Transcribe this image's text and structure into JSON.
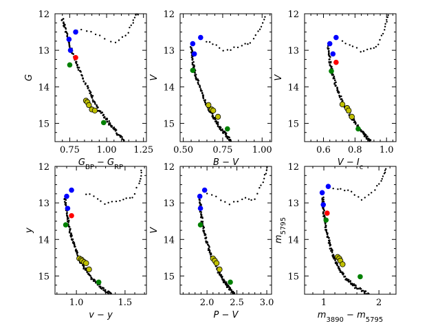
{
  "chart_data": [
    {
      "type": "scatter",
      "xlabel": "G_BP − G_RP",
      "ylabel": "G",
      "xlim": [
        0.65,
        1.27
      ],
      "ylim": [
        15.5,
        12.0
      ],
      "xticks": [
        0.75,
        1.0,
        1.25
      ],
      "xtick_labels": [
        "0.75",
        "1.00",
        "1.25"
      ],
      "yticks": [
        12,
        13,
        14,
        15
      ],
      "ytick_labels": [
        "12",
        "13",
        "14",
        "15"
      ],
      "ms": {
        "x": [
          0.7,
          0.73,
          0.77,
          0.82,
          0.88,
          0.94,
          1.0,
          1.06,
          1.12
        ],
        "y": [
          12.15,
          12.6,
          13.1,
          13.6,
          14.1,
          14.6,
          14.9,
          15.2,
          15.5
        ]
      },
      "giants": {
        "x": [
          0.8,
          0.86,
          0.92,
          0.98,
          1.05,
          1.1,
          1.14,
          1.16,
          1.18,
          1.19,
          1.2,
          1.21
        ],
        "y": [
          12.45,
          12.47,
          12.55,
          12.65,
          12.8,
          12.7,
          12.55,
          12.35,
          12.2,
          12.1,
          12.0,
          12.05
        ]
      },
      "blue": {
        "x": [
          0.79,
          0.745,
          0.755
        ],
        "y": [
          12.5,
          12.7,
          13.0
        ]
      },
      "red": {
        "x": [
          0.79
        ],
        "y": [
          13.2
        ]
      },
      "green": {
        "x": [
          0.75,
          0.98
        ],
        "y": [
          13.4,
          14.98
        ]
      },
      "yellow": {
        "x": [
          0.86,
          0.87,
          0.88,
          0.9,
          0.92
        ],
        "y": [
          14.38,
          14.42,
          14.5,
          14.62,
          14.65
        ]
      }
    },
    {
      "type": "scatter",
      "xlabel": "B − V",
      "ylabel": "V",
      "xlim": [
        0.48,
        1.06
      ],
      "ylim": [
        15.5,
        12.0
      ],
      "xticks": [
        0.5,
        0.75,
        1.0
      ],
      "xtick_labels": [
        "0.50",
        "0.75",
        "1.00"
      ],
      "yticks": [
        12,
        13,
        14,
        15
      ],
      "ytick_labels": [
        "12",
        "13",
        "14",
        "15"
      ],
      "ms": {
        "x": [
          0.55,
          0.56,
          0.58,
          0.61,
          0.65,
          0.69,
          0.73,
          0.77,
          0.8
        ],
        "y": [
          12.9,
          13.3,
          13.7,
          14.1,
          14.5,
          14.8,
          15.1,
          15.3,
          15.5
        ]
      },
      "giants": {
        "x": [
          0.65,
          0.7,
          0.76,
          0.82,
          0.88,
          0.93,
          0.97,
          1.0,
          1.02
        ],
        "y": [
          12.75,
          12.85,
          13.0,
          12.95,
          12.85,
          12.8,
          12.5,
          12.3,
          12.1
        ]
      },
      "blue": {
        "x": [
          0.61,
          0.56,
          0.57
        ],
        "y": [
          12.65,
          12.82,
          13.1
        ]
      },
      "red": {
        "x": [],
        "y": []
      },
      "green": {
        "x": [
          0.56,
          0.78
        ],
        "y": [
          13.55,
          15.15
        ]
      },
      "yellow": {
        "x": [
          0.66,
          0.68,
          0.69,
          0.72
        ],
        "y": [
          14.5,
          14.62,
          14.65,
          14.82
        ]
      }
    },
    {
      "type": "scatter",
      "xlabel": "V − I_c",
      "ylabel": "V",
      "xlim": [
        0.48,
        1.06
      ],
      "ylim": [
        15.5,
        12.0
      ],
      "xticks": [
        0.6,
        0.8,
        1.0
      ],
      "xtick_labels": [
        "0.6",
        "0.8",
        "1.0"
      ],
      "yticks": [
        12,
        13,
        14,
        15
      ],
      "ytick_labels": [
        "12",
        "13",
        "14",
        "15"
      ],
      "ms": {
        "x": [
          0.63,
          0.64,
          0.66,
          0.69,
          0.73,
          0.77,
          0.82,
          0.86,
          0.9
        ],
        "y": [
          12.85,
          13.3,
          13.7,
          14.1,
          14.5,
          14.8,
          15.1,
          15.3,
          15.5
        ]
      },
      "giants": {
        "x": [
          0.72,
          0.78,
          0.84,
          0.9,
          0.94,
          0.97,
          0.99,
          1.0,
          1.01
        ],
        "y": [
          12.75,
          12.85,
          13.05,
          12.95,
          12.9,
          12.6,
          12.4,
          12.2,
          12.05
        ]
      },
      "blue": {
        "x": [
          0.68,
          0.64,
          0.66
        ],
        "y": [
          12.65,
          12.82,
          13.1
        ]
      },
      "red": {
        "x": [
          0.68
        ],
        "y": [
          13.33
        ]
      },
      "green": {
        "x": [
          0.65,
          0.82
        ],
        "y": [
          13.57,
          15.15
        ]
      },
      "yellow": {
        "x": [
          0.72,
          0.75,
          0.76,
          0.78
        ],
        "y": [
          14.48,
          14.58,
          14.65,
          14.82
        ]
      }
    },
    {
      "type": "scatter",
      "xlabel": "v − y",
      "ylabel": "y",
      "xlim": [
        0.78,
        1.72
      ],
      "ylim": [
        15.5,
        12.0
      ],
      "xticks": [
        1.0,
        1.5
      ],
      "xtick_labels": [
        "1.0",
        "1.5"
      ],
      "yticks": [
        12,
        13,
        14,
        15
      ],
      "ytick_labels": [
        "12",
        "13",
        "14",
        "15"
      ],
      "ms": {
        "x": [
          0.88,
          0.9,
          0.93,
          0.97,
          1.02,
          1.09,
          1.17,
          1.25,
          1.36
        ],
        "y": [
          12.85,
          13.3,
          13.7,
          14.1,
          14.5,
          14.8,
          15.1,
          15.3,
          15.5
        ]
      },
      "giants": {
        "x": [
          1.1,
          1.2,
          1.3,
          1.4,
          1.5,
          1.58,
          1.64,
          1.66,
          1.67
        ],
        "y": [
          12.75,
          12.85,
          13.05,
          12.95,
          12.9,
          12.85,
          12.5,
          12.3,
          12.1
        ]
      },
      "blue": {
        "x": [
          0.95,
          0.9,
          0.91
        ],
        "y": [
          12.65,
          12.82,
          13.15
        ]
      },
      "red": {
        "x": [
          0.95
        ],
        "y": [
          13.35
        ]
      },
      "green": {
        "x": [
          0.89,
          1.23
        ],
        "y": [
          13.6,
          15.17
        ]
      },
      "yellow": {
        "x": [
          1.03,
          1.05,
          1.06,
          1.08,
          1.1,
          1.13
        ],
        "y": [
          14.52,
          14.55,
          14.58,
          14.62,
          14.65,
          14.82
        ]
      }
    },
    {
      "type": "scatter",
      "xlabel": "P − V",
      "ylabel": "V",
      "xlim": [
        1.55,
        3.08
      ],
      "ylim": [
        15.5,
        12.0
      ],
      "xticks": [
        2.0,
        2.5,
        3.0
      ],
      "xtick_labels": [
        "2.0",
        "2.5",
        "3.0"
      ],
      "yticks": [
        12,
        13,
        14,
        15
      ],
      "ytick_labels": [
        "12",
        "13",
        "14",
        "15"
      ],
      "ms": {
        "x": [
          1.88,
          1.9,
          1.94,
          2.0,
          2.08,
          2.17,
          2.27,
          2.36,
          2.46
        ],
        "y": [
          12.85,
          13.3,
          13.7,
          14.1,
          14.5,
          14.8,
          15.1,
          15.3,
          15.5
        ]
      },
      "giants": {
        "x": [
          2.0,
          2.18,
          2.36,
          2.52,
          2.66,
          2.78,
          2.88,
          2.94,
          2.98,
          3.0
        ],
        "y": [
          12.75,
          12.85,
          13.05,
          12.95,
          12.85,
          12.95,
          12.6,
          12.4,
          12.2,
          12.05
        ]
      },
      "blue": {
        "x": [
          1.96,
          1.88,
          1.89
        ],
        "y": [
          12.65,
          12.82,
          13.15
        ]
      },
      "red": {
        "x": [],
        "y": []
      },
      "green": {
        "x": [
          1.89,
          2.39
        ],
        "y": [
          13.6,
          15.17
        ]
      },
      "yellow": {
        "x": [
          2.1,
          2.13,
          2.16,
          2.21
        ],
        "y": [
          14.52,
          14.58,
          14.65,
          14.82
        ]
      }
    },
    {
      "type": "scatter",
      "xlabel": "m_3890 − m_5795",
      "ylabel": "m_5795",
      "xlim": [
        0.65,
        2.31
      ],
      "ylim": [
        15.5,
        12.0
      ],
      "xticks": [
        1,
        2
      ],
      "xtick_labels": [
        "1",
        "2"
      ],
      "yticks": [
        12,
        13,
        14,
        15
      ],
      "ytick_labels": [
        "12",
        "13",
        "14",
        "15"
      ],
      "ms": {
        "x": [
          0.98,
          1.0,
          1.04,
          1.1,
          1.18,
          1.28,
          1.42,
          1.58,
          1.82
        ],
        "y": [
          12.85,
          13.3,
          13.7,
          14.1,
          14.5,
          14.8,
          15.1,
          15.3,
          15.5
        ]
      },
      "giants": {
        "x": [
          1.18,
          1.35,
          1.52,
          1.68,
          1.84,
          1.98,
          2.06,
          2.1,
          2.12
        ],
        "y": [
          12.58,
          12.62,
          12.72,
          12.9,
          12.75,
          12.55,
          12.35,
          12.2,
          12.05
        ]
      },
      "blue": {
        "x": [
          1.08,
          0.97,
          0.99
        ],
        "y": [
          12.55,
          12.72,
          13.05
        ]
      },
      "red": {
        "x": [
          1.06
        ],
        "y": [
          13.28
        ]
      },
      "green": {
        "x": [
          1.04,
          1.66
        ],
        "y": [
          13.47,
          15.02
        ]
      },
      "yellow": {
        "x": [
          1.25,
          1.28,
          1.3,
          1.34
        ],
        "y": [
          14.48,
          14.52,
          14.58,
          14.68
        ]
      }
    }
  ],
  "colors": {
    "ms": "#000000",
    "blue": "#0000ff",
    "red": "#ff0000",
    "green": "#008000",
    "yellow": "#bfbf00",
    "yellow_edge": "#000000"
  }
}
